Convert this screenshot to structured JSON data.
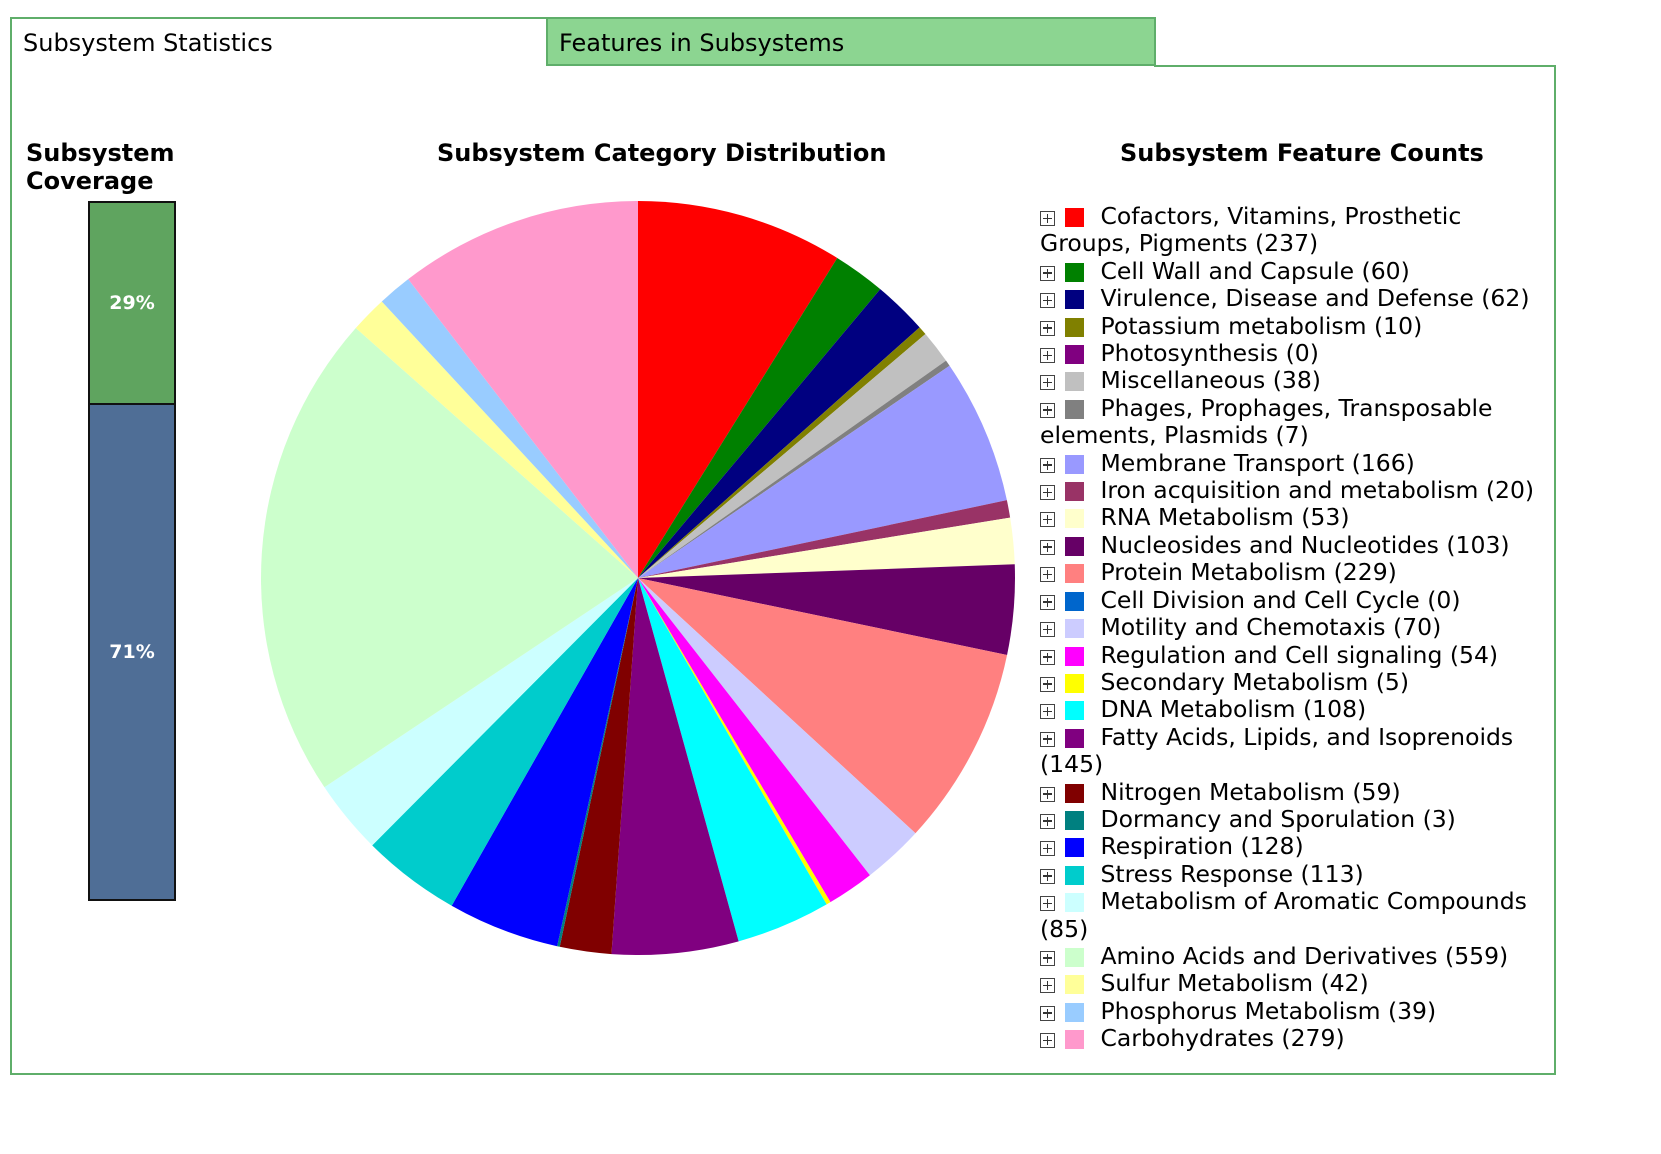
{
  "tabs": [
    {
      "label": "Subsystem Statistics",
      "active": true
    },
    {
      "label": "Features in Subsystems",
      "active": false
    }
  ],
  "coverage": {
    "title": "Subsystem Coverage",
    "covered_percent": 29,
    "uncovered_percent": 71,
    "covered_label": "29%",
    "uncovered_label": "71%",
    "covered_color": "#5fa45f",
    "uncovered_color": "#4f6e96"
  },
  "pie_title": "Subsystem Category Distribution",
  "legend_title": "Subsystem Feature Counts",
  "chart_data": {
    "type": "pie",
    "title": "Subsystem Category Distribution",
    "categories": [
      {
        "name": "Cofactors, Vitamins, Prosthetic Groups, Pigments",
        "value": 237,
        "color": "#ff0000"
      },
      {
        "name": "Cell Wall and Capsule",
        "value": 60,
        "color": "#008000"
      },
      {
        "name": "Virulence, Disease and Defense",
        "value": 62,
        "color": "#000080"
      },
      {
        "name": "Potassium metabolism",
        "value": 10,
        "color": "#808000"
      },
      {
        "name": "Photosynthesis",
        "value": 0,
        "color": "#800080"
      },
      {
        "name": "Miscellaneous",
        "value": 38,
        "color": "#c0c0c0"
      },
      {
        "name": "Phages, Prophages, Transposable elements, Plasmids",
        "value": 7,
        "color": "#808080"
      },
      {
        "name": "Membrane Transport",
        "value": 166,
        "color": "#9999ff"
      },
      {
        "name": "Iron acquisition and metabolism",
        "value": 20,
        "color": "#993366"
      },
      {
        "name": "RNA Metabolism",
        "value": 53,
        "color": "#ffffcc"
      },
      {
        "name": "Nucleosides and Nucleotides",
        "value": 103,
        "color": "#660066"
      },
      {
        "name": "Protein Metabolism",
        "value": 229,
        "color": "#ff8080"
      },
      {
        "name": "Cell Division and Cell Cycle",
        "value": 0,
        "color": "#0066cc"
      },
      {
        "name": "Motility and Chemotaxis",
        "value": 70,
        "color": "#ccccff"
      },
      {
        "name": "Regulation and Cell signaling",
        "value": 54,
        "color": "#ff00ff"
      },
      {
        "name": "Secondary Metabolism",
        "value": 5,
        "color": "#ffff00"
      },
      {
        "name": "DNA Metabolism",
        "value": 108,
        "color": "#00ffff"
      },
      {
        "name": "Fatty Acids, Lipids, and Isoprenoids",
        "value": 145,
        "color": "#800080"
      },
      {
        "name": "Nitrogen Metabolism",
        "value": 59,
        "color": "#800000"
      },
      {
        "name": "Dormancy and Sporulation",
        "value": 3,
        "color": "#008080"
      },
      {
        "name": "Respiration",
        "value": 128,
        "color": "#0000ff"
      },
      {
        "name": "Stress Response",
        "value": 113,
        "color": "#00cccc"
      },
      {
        "name": "Metabolism of Aromatic Compounds",
        "value": 85,
        "color": "#ccffff"
      },
      {
        "name": "Amino Acids and Derivatives",
        "value": 559,
        "color": "#ccffcc"
      },
      {
        "name": "Sulfur Metabolism",
        "value": 42,
        "color": "#ffff99"
      },
      {
        "name": "Phosphorus Metabolism",
        "value": 39,
        "color": "#99ccff"
      },
      {
        "name": "Carbohydrates",
        "value": 279,
        "color": "#ff99cc"
      }
    ],
    "legend_placement": "right"
  }
}
